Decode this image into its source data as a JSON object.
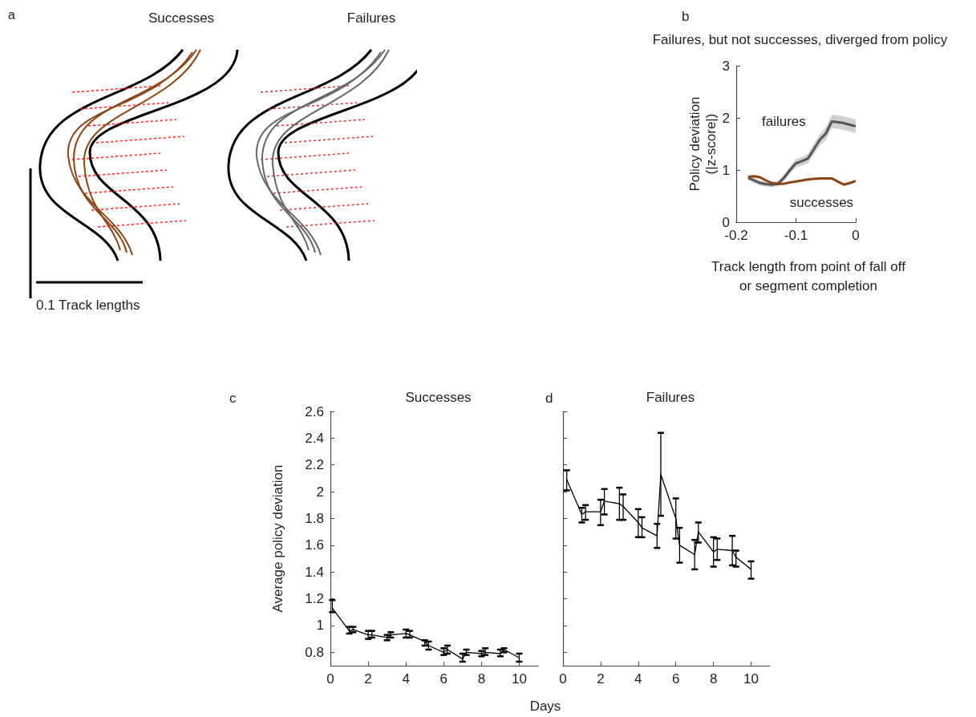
{
  "chart_data": [
    {
      "type": "other",
      "annotations": [
        "a",
        "Successes",
        "Failures",
        "0.1 Track lengths"
      ]
    },
    {
      "type": "line",
      "title": "Failures, but not successes, diverged from policy",
      "xlabel": "Track length from point of fall off\nor segment completion",
      "ylabel": "Policy deviation\n(|z-score|)",
      "annotations": [
        "b"
      ],
      "xlim": [
        -0.2,
        0
      ],
      "xticks": [
        -0.2,
        -0.1,
        0
      ],
      "ylim": [
        0,
        3
      ],
      "yticks": [
        0,
        1,
        2,
        3
      ],
      "x": [
        -0.18,
        -0.17,
        -0.16,
        -0.15,
        -0.14,
        -0.13,
        -0.12,
        -0.11,
        -0.1,
        -0.09,
        -0.08,
        -0.07,
        -0.06,
        -0.05,
        -0.04,
        -0.03,
        -0.02,
        -0.01,
        0
      ],
      "series": [
        {
          "name": "failures",
          "color": "#555555",
          "values": [
            0.85,
            0.8,
            0.75,
            0.73,
            0.72,
            0.74,
            0.85,
            1.0,
            1.13,
            1.17,
            1.22,
            1.4,
            1.58,
            1.7,
            1.93,
            1.92,
            1.9,
            1.87,
            1.84
          ],
          "lower": [
            0.8,
            0.75,
            0.7,
            0.68,
            0.67,
            0.69,
            0.79,
            0.93,
            1.05,
            1.09,
            1.13,
            1.3,
            1.47,
            1.58,
            1.8,
            1.79,
            1.77,
            1.74,
            1.71
          ],
          "upper": [
            0.9,
            0.85,
            0.8,
            0.78,
            0.77,
            0.79,
            0.91,
            1.07,
            1.21,
            1.25,
            1.31,
            1.5,
            1.69,
            1.82,
            2.06,
            2.05,
            2.03,
            2.0,
            1.97
          ]
        },
        {
          "name": "successes",
          "color": "#8b4513",
          "values": [
            0.87,
            0.88,
            0.86,
            0.8,
            0.75,
            0.73,
            0.74,
            0.76,
            0.78,
            0.8,
            0.82,
            0.83,
            0.84,
            0.84,
            0.84,
            0.78,
            0.72,
            0.75,
            0.79
          ]
        }
      ]
    },
    {
      "type": "line",
      "title": "Successes",
      "xlabel": "Days",
      "ylabel": "Average policy deviation",
      "annotations": [
        "c"
      ],
      "xlim": [
        0,
        11
      ],
      "xticks": [
        0,
        2,
        4,
        6,
        8,
        10
      ],
      "ylim": [
        0.7,
        2.6
      ],
      "yticks": [
        0.8,
        1,
        1.2,
        1.4,
        1.6,
        1.8,
        2,
        2.2,
        2.4,
        2.6
      ],
      "x": [
        0.1,
        1,
        1.2,
        2,
        2.2,
        3,
        3.2,
        4,
        4.2,
        5,
        5.2,
        6,
        6.2,
        7,
        7.2,
        8,
        8.2,
        9,
        9.2,
        10
      ],
      "series": [
        {
          "color": "#000000",
          "values": [
            1.13,
            0.96,
            0.97,
            0.93,
            0.93,
            0.91,
            0.93,
            0.94,
            0.93,
            0.88,
            0.85,
            0.8,
            0.82,
            0.75,
            0.8,
            0.79,
            0.8,
            0.79,
            0.82,
            0.76
          ],
          "errors": [
            [
              1.1,
              1.19
            ],
            [
              0.94,
              0.99
            ],
            [
              0.95,
              0.99
            ],
            [
              0.9,
              0.96
            ],
            [
              0.91,
              0.96
            ],
            [
              0.89,
              0.93
            ],
            [
              0.91,
              0.95
            ],
            [
              0.91,
              0.97
            ],
            [
              0.91,
              0.96
            ],
            [
              0.85,
              0.89
            ],
            [
              0.82,
              0.88
            ],
            [
              0.78,
              0.83
            ],
            [
              0.79,
              0.85
            ],
            [
              0.73,
              0.79
            ],
            [
              0.78,
              0.82
            ],
            [
              0.77,
              0.81
            ],
            [
              0.78,
              0.83
            ],
            [
              0.77,
              0.82
            ],
            [
              0.8,
              0.83
            ],
            [
              0.73,
              0.79
            ]
          ]
        }
      ]
    },
    {
      "type": "line",
      "title": "Failures",
      "annotations": [
        "d"
      ],
      "tick_labels": "x",
      "xlim": [
        0,
        11
      ],
      "xticks": [
        0,
        2,
        4,
        6,
        8,
        10
      ],
      "ylim": [
        0.7,
        2.6
      ],
      "yticks": [
        0.8,
        1,
        1.2,
        1.4,
        1.6,
        1.8,
        2,
        2.2,
        2.4,
        2.6
      ],
      "x": [
        0.2,
        1,
        1.2,
        2,
        2.2,
        3,
        3.2,
        4,
        4.2,
        5,
        5.2,
        6,
        6.2,
        7,
        7.2,
        8,
        8.2,
        9,
        9.2,
        10
      ],
      "series": [
        {
          "color": "#000000",
          "values": [
            2.09,
            1.83,
            1.85,
            1.85,
            1.93,
            1.91,
            1.89,
            1.77,
            1.73,
            1.67,
            2.13,
            1.8,
            1.6,
            1.53,
            1.7,
            1.55,
            1.57,
            1.56,
            1.51,
            1.42
          ],
          "errors": [
            [
              2.01,
              2.16
            ],
            [
              1.77,
              1.88
            ],
            [
              1.79,
              1.9
            ],
            [
              1.75,
              1.94
            ],
            [
              1.83,
              2.02
            ],
            [
              1.79,
              2.03
            ],
            [
              1.79,
              1.98
            ],
            [
              1.66,
              1.87
            ],
            [
              1.66,
              1.81
            ],
            [
              1.58,
              1.76
            ],
            [
              1.82,
              2.44
            ],
            [
              1.65,
              1.95
            ],
            [
              1.47,
              1.73
            ],
            [
              1.42,
              1.64
            ],
            [
              1.62,
              1.77
            ],
            [
              1.44,
              1.66
            ],
            [
              1.49,
              1.65
            ],
            [
              1.45,
              1.67
            ],
            [
              1.44,
              1.56
            ],
            [
              1.35,
              1.48
            ]
          ]
        }
      ]
    }
  ]
}
